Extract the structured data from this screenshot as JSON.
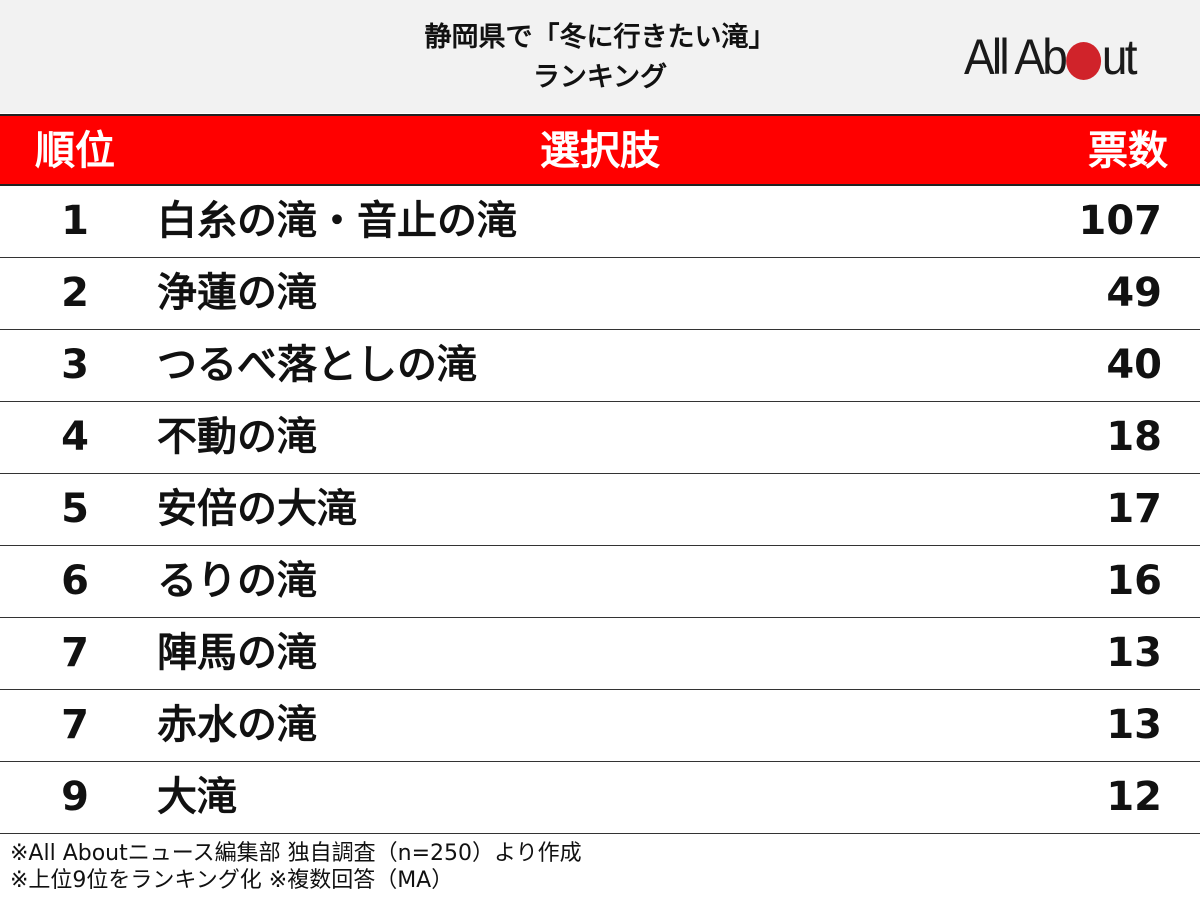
{
  "title_line1": "静岡県で「冬に行きたい滝」",
  "title_line2": "ランキング",
  "logo_text": "All About",
  "colors": {
    "header_red": "#ff0000",
    "logo_red": "#d0232a",
    "header_bg": "#f2f2f2"
  },
  "chart_data": {
    "type": "table",
    "columns": [
      "順位",
      "選択肢",
      "票数"
    ],
    "rows": [
      {
        "rank": "1",
        "name": "白糸の滝・音止の滝",
        "votes": 107
      },
      {
        "rank": "2",
        "name": "浄蓮の滝",
        "votes": 49
      },
      {
        "rank": "3",
        "name": "つるべ落としの滝",
        "votes": 40
      },
      {
        "rank": "4",
        "name": "不動の滝",
        "votes": 18
      },
      {
        "rank": "5",
        "name": "安倍の大滝",
        "votes": 17
      },
      {
        "rank": "6",
        "name": "るりの滝",
        "votes": 16
      },
      {
        "rank": "7",
        "name": "陣馬の滝",
        "votes": 13
      },
      {
        "rank": "7",
        "name": "赤水の滝",
        "votes": 13
      },
      {
        "rank": "9",
        "name": "大滝",
        "votes": 12
      }
    ]
  },
  "footnotes": [
    "※All Aboutニュース編集部 独自調査（n=250）より作成",
    "※上位9位をランキング化 ※複数回答（MA）"
  ]
}
